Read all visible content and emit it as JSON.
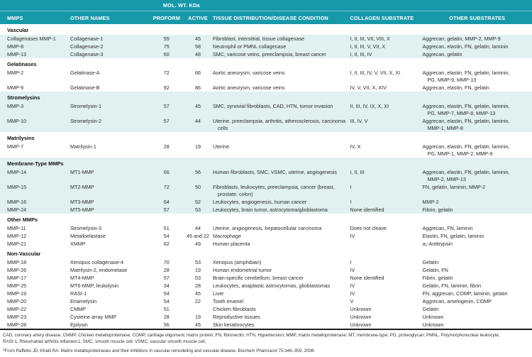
{
  "colors": {
    "header_teal": "#1899aa",
    "band_tint": "#e0f1f0",
    "bottom_rule": "#1d1d1d"
  },
  "header": {
    "mol_wt_label": "MOL. WT. KDa",
    "columns": {
      "mmps": "MMPS",
      "other_names": "OTHER NAMES",
      "proform": "PROFORM",
      "active": "ACTIVE",
      "tissue": "TISSUE DISTRIBUTION/DISEASE CONDITION",
      "collagen": "COLLAGEN SUBSTRATE",
      "other_substrates": "OTHER SUBSTRATES"
    }
  },
  "sections": [
    {
      "title": "Vascular",
      "tinted": true,
      "header_tinted": false,
      "rows": [
        {
          "mmp": "Collagenases MMP-1",
          "name": "Collagenase-1",
          "pro": "55",
          "act": "45",
          "tissue": "Fibroblast, interstitial, tissue collagenase",
          "collagen": "I, II, III, VII, VIII, X",
          "other": "Aggrecan, gelatin, MMP-2, MMP-9"
        },
        {
          "mmp": "MMP-8",
          "name": "Collagenase-2",
          "pro": "75",
          "act": "58",
          "tissue": "Neutrophil or PMNL collagenase",
          "collagen": "I, II, III, V, VII, X",
          "other": "Aggrecan, elastin, FN, gelatin, laminin"
        },
        {
          "mmp": "MMP-13",
          "name": "Collagenase-3",
          "pro": "60",
          "act": "48",
          "tissue": "SMC, varicose veins, preeclampsia, breast cancer",
          "collagen": "I, II, III, IV",
          "other": "Aggrecan, gelatin"
        }
      ]
    },
    {
      "title": "Gelatinases",
      "tinted": false,
      "header_tinted": false,
      "rows": [
        {
          "mmp": "MMP-2",
          "name": "Gelatinase-A",
          "pro": "72",
          "act": "66",
          "tissue": "Aortic aneurysm, varicose veins",
          "collagen": "I, II, III, IV, V, VII, X, XI",
          "other": "Aggrecan, elastin, FN, gelatin, laminin, PG, MMP-9, MMP-13"
        },
        {
          "mmp": "MMP-9",
          "name": "Gelatinase-B",
          "pro": "92",
          "act": "86",
          "tissue": "Aortic aneurysm, varicose veins",
          "collagen": "IV, V, VII, X, XIV",
          "other": "Aggrecan, elastin, FN, gelatin"
        }
      ]
    },
    {
      "title": "Stromelysins",
      "tinted": true,
      "header_tinted": true,
      "rows": [
        {
          "mmp": "MMP-3",
          "name": "Stromelysin-1",
          "pro": "57",
          "act": "45",
          "tissue": "SMC, synovial fibroblasts, CAD, HTN, tumor invasion",
          "collagen": "II, III, IV, IX, X, XI",
          "other": "Aggrecan, elastin, FN, gelatin, laminin, PG, MMP-7, MMP-8, MMP-13"
        },
        {
          "mmp": "MMP-10",
          "name": "Stromelysin-2",
          "pro": "57",
          "act": "44",
          "tissue": "Uterine, preeclampsia, arthritis, atherosclerosis, carcinoma cells",
          "collagen": "III, IV, V",
          "other": "Aggrecan, elastin, FN, gelatin, laminin, MMP-1, MMP-8"
        }
      ]
    },
    {
      "title": "Matrilysins",
      "tinted": false,
      "header_tinted": false,
      "rows": [
        {
          "mmp": "MMP-7",
          "name": "Matrilysin-1",
          "pro": "28",
          "act": "19",
          "tissue": "Uterine",
          "collagen": "IV, X",
          "other": "Aggrecan, elastin, FN, gelatin, laminin, PG, MMP-1, MMP-2, MMP-9"
        }
      ]
    },
    {
      "title": "Membrane-Type MMPs",
      "tinted": true,
      "header_tinted": true,
      "rows": [
        {
          "mmp": "MMP-14",
          "name": "MT1-MMP",
          "pro": "66",
          "act": "56",
          "tissue": "Human fibroblasts, SMC, VSMC, uterine, angiogenesis",
          "collagen": "I, II, III",
          "other": "Aggrecan, elastin, FN, gelatin, laminin, MMP-2, MMP-13"
        },
        {
          "mmp": "MMP-15",
          "name": "MT2-MMP",
          "pro": "72",
          "act": "50",
          "tissue": "Fibroblasts, leukocytes, preeclampsia, cancer (breast, prostate, colon)",
          "collagen": "I",
          "other": "FN, gelatin, laminin, MMP-2"
        },
        {
          "mmp": "MMP-16",
          "name": "MT3-MMP",
          "pro": "64",
          "act": "52",
          "tissue": "Leukocytes, angiogenesis, human cancer",
          "collagen": "I",
          "other": "MMP-2"
        },
        {
          "mmp": "MMP-24",
          "name": "MT5-MMP",
          "pro": "57",
          "act": "53",
          "tissue": "Leukocytes, brain tumor, astrocytoma/glioblastoma",
          "collagen": "None identified",
          "other": "Fibrin, gelatin"
        }
      ]
    },
    {
      "title": "Other MMPs",
      "tinted": false,
      "header_tinted": false,
      "rows": [
        {
          "mmp": "MMP-11",
          "name": "Stromelysin-3",
          "pro": "51",
          "act": "44",
          "tissue": "Uterine, angiogenesis, hepatocellular carcinoma",
          "collagen": "Does not cleave",
          "other": "Aggrecan, FN, laminin"
        },
        {
          "mmp": "MMP-12",
          "name": "Metalloelastase",
          "pro": "54",
          "act": "45 and 22",
          "tissue": "Macrophage",
          "collagen": "IV",
          "other": "Elastin, FN, gelatin, laminin"
        },
        {
          "mmp": "MMP-21",
          "name": "XMMP",
          "pro": "62",
          "act": "49",
          "tissue": "Human placenta",
          "collagen": "",
          "other": "α₁-Antitrypsin"
        }
      ]
    },
    {
      "title": "Non-Vascular",
      "tinted": false,
      "header_tinted": false,
      "rows": [
        {
          "mmp": "MMP-18",
          "name": "Xenopus collagenase-4",
          "pro": "70",
          "act": "53",
          "tissue": "Xenopus (amphibian)",
          "collagen": "I",
          "other": "Gelatin"
        },
        {
          "mmp": "MMP-26",
          "name": "Matrilysin-2, endometase",
          "pro": "28",
          "act": "19",
          "tissue": "Human endometrial tumor",
          "collagen": "IV",
          "other": "Gelatin, FN"
        },
        {
          "mmp": "MMP-17",
          "name": "MT4-MMP",
          "pro": "57",
          "act": "53",
          "tissue": "Brain-specific cerebellum, breast cancer",
          "collagen": "None identified",
          "other": "Fibrin, gelatin"
        },
        {
          "mmp": "MMP-25",
          "name": "MT6-MMP, leukolysin",
          "pro": "34",
          "act": "28",
          "tissue": "Leukocytes, anaplastic astrocytomas, glioblastomas",
          "collagen": "IV",
          "other": "Gelatin, FN, laminin, fibrin"
        },
        {
          "mmp": "MMP-19",
          "name": "RASI-1",
          "pro": "54",
          "act": "45",
          "tissue": "Liver",
          "collagen": "IV",
          "other": "FN, aggrecan, COMP, laminin, gelatin"
        },
        {
          "mmp": "MMP-20",
          "name": "Enamelysin",
          "pro": "54",
          "act": "22",
          "tissue": "Tooth enamel",
          "collagen": "V",
          "other": "Aggrecan, amelogenin, COMP"
        },
        {
          "mmp": "MMP-22",
          "name": "CMMP",
          "pro": "51",
          "act": "",
          "tissue": "Chicken fibroblasts",
          "collagen": "Unknown",
          "other": "Gelatin"
        },
        {
          "mmp": "MMP-23",
          "name": "Cysteine array MMP",
          "pro": "28",
          "act": "19",
          "tissue": "Reproductive tissues",
          "collagen": "Unknown",
          "other": "Unknown"
        },
        {
          "mmp": "MMP-28",
          "name": "Epilysin",
          "pro": "56",
          "act": "45",
          "tissue": "Skin keratinocytes",
          "collagen": "Unknown",
          "other": "Unknown"
        }
      ]
    }
  ],
  "footnotes": {
    "lines": [
      "CAD, coronary artery disease; CMMP, Chicken metalloproteinase; COMP, cartilage oligomeric matrix protein; FN, fibronectin; HTN, Hypertension; MMP, matrix metalloproteinase; MT, membrane-type; PG, proteoglycan; PMNL, Polymorphonuclear leukocyte;",
      "RASI-1, Rheumatoid arthritis inflamed-1; SMC, smooth muscle cell; VSMC, vascular smooth muscle cell."
    ],
    "citation": "*From Raffetto JD, Khalil RA: Matrix metalloproteinases and their inhibitors in vascular remodeling and vascular disease. Biochem Pharmacol 75:346–359, 2008."
  }
}
